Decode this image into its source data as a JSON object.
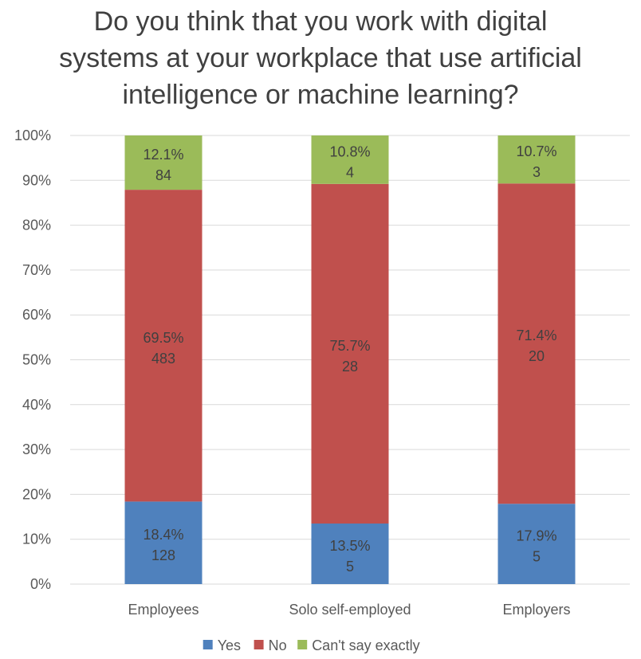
{
  "chart_data": {
    "type": "bar",
    "stacked": true,
    "percent_stacked": true,
    "title_lines": [
      "Do you think that you work with digital",
      "systems at your workplace that use artificial",
      "intelligence or machine learning?"
    ],
    "categories": [
      "Employees",
      "Solo self-employed",
      "Employers"
    ],
    "series": [
      {
        "name": "Yes",
        "color": "#4F81BD",
        "values": [
          18.4,
          13.5,
          17.9
        ],
        "pct_labels": [
          "18.4%",
          "13.5%",
          "17.9%"
        ],
        "count_labels": [
          "128",
          "5",
          "5"
        ]
      },
      {
        "name": "No",
        "color": "#C0504D",
        "values": [
          69.5,
          75.7,
          71.4
        ],
        "pct_labels": [
          "69.5%",
          "75.7%",
          "71.4%"
        ],
        "count_labels": [
          "483",
          "28",
          "20"
        ]
      },
      {
        "name": "Can't say exactly",
        "color": "#9BBB59",
        "values": [
          12.1,
          10.8,
          10.7
        ],
        "pct_labels": [
          "12.1%",
          "10.8%",
          "10.7%"
        ],
        "count_labels": [
          "84",
          "4",
          "3"
        ]
      }
    ],
    "y_ticks": [
      "0%",
      "10%",
      "20%",
      "30%",
      "40%",
      "50%",
      "60%",
      "70%",
      "80%",
      "90%",
      "100%"
    ],
    "ylim": [
      0,
      100
    ],
    "grid": true,
    "legend_position": "bottom"
  }
}
